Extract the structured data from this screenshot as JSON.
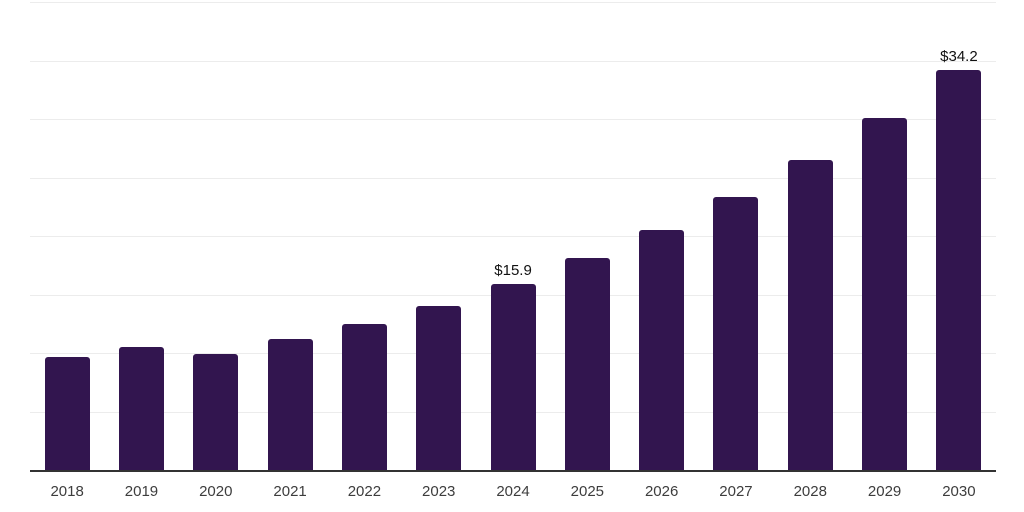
{
  "chart_data": {
    "type": "bar",
    "title": "",
    "categories": [
      "2018",
      "2019",
      "2020",
      "2021",
      "2022",
      "2023",
      "2024",
      "2025",
      "2026",
      "2027",
      "2028",
      "2029",
      "2030"
    ],
    "values": [
      9.7,
      10.5,
      9.9,
      11.2,
      12.5,
      14.0,
      15.9,
      18.1,
      20.5,
      23.3,
      26.5,
      30.1,
      34.2
    ],
    "data_labels": [
      {
        "category": "2024",
        "text": "$15.9"
      },
      {
        "category": "2030",
        "text": "$34.2"
      }
    ],
    "xlabel": "",
    "ylabel": "",
    "ylim": [
      0,
      40
    ],
    "gridline_step": 5,
    "grid": true,
    "legend": "none",
    "colors": {
      "bar": "#32154F",
      "gridline": "#ececec",
      "axis_line": "#333333",
      "tick_label": "#3d3d3d",
      "value_label": "#111111",
      "background": "#ffffff"
    }
  }
}
